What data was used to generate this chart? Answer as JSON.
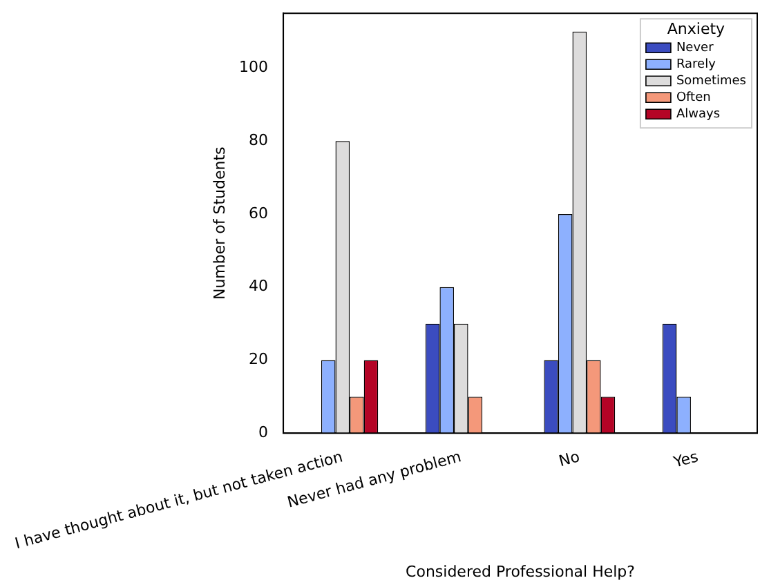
{
  "chart_data": {
    "type": "bar",
    "xlabel": "Considered Professional Help?",
    "ylabel": "Number of Students",
    "legend_title": "Anxiety",
    "categories": [
      "I have thought about it, but not taken action",
      "Never had any problem",
      "No",
      "Yes"
    ],
    "series": [
      {
        "name": "Never",
        "color": "#3b4cc0",
        "values": [
          0,
          30,
          20,
          30
        ]
      },
      {
        "name": "Rarely",
        "color": "#8db0fe",
        "values": [
          20,
          40,
          60,
          10
        ]
      },
      {
        "name": "Sometimes",
        "color": "#dddcdc",
        "values": [
          80,
          30,
          110,
          0
        ]
      },
      {
        "name": "Often",
        "color": "#f4987a",
        "values": [
          10,
          10,
          20,
          0
        ]
      },
      {
        "name": "Always",
        "color": "#b40426",
        "values": [
          20,
          0,
          10,
          0
        ]
      }
    ],
    "ylim": [
      0,
      115
    ],
    "yticks": [
      0,
      20,
      40,
      60,
      80,
      100
    ],
    "grid": false,
    "legend": "top right"
  }
}
